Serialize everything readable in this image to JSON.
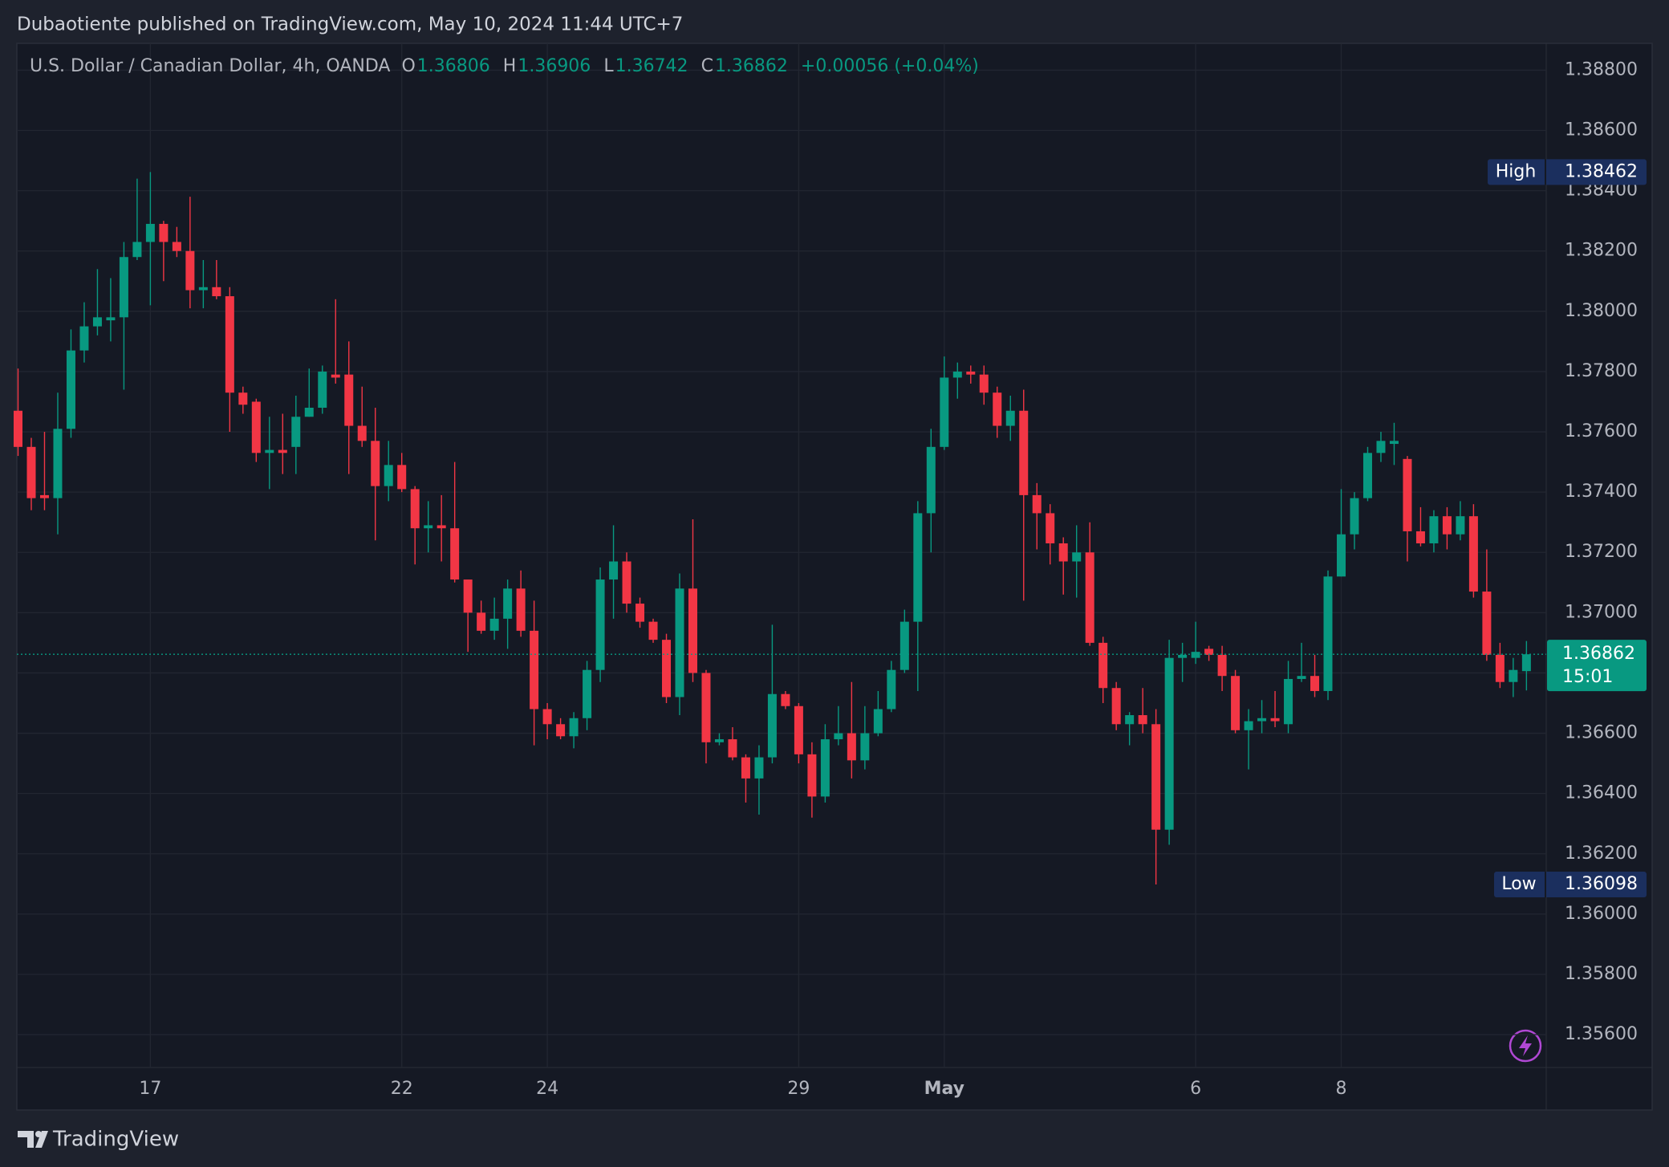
{
  "header": {
    "published": "Dubaotiente published on TradingView.com, May 10, 2024 11:44 UTC+7"
  },
  "chart_data": {
    "type": "candlestick",
    "title": "U.S. Dollar / Canadian Dollar, 4h, OANDA",
    "ohlc_labels": [
      "O",
      "H",
      "L",
      "C"
    ],
    "change": "+0.00056 (+0.04%)",
    "high_label": "High",
    "low_label": "Low",
    "countdown": "15:01",
    "up_color": "#089981",
    "down_color": "#f23645",
    "grid": true,
    "categories": [
      null,
      null,
      null,
      null,
      null,
      null,
      null,
      null,
      null,
      null,
      "17",
      null,
      null,
      null,
      null,
      null,
      null,
      null,
      null,
      null,
      null,
      null,
      null,
      null,
      null,
      null,
      null,
      null,
      null,
      "22",
      null,
      null,
      null,
      null,
      null,
      null,
      null,
      null,
      null,
      null,
      "24",
      null,
      null,
      null,
      null,
      null,
      null,
      null,
      null,
      null,
      null,
      null,
      null,
      null,
      null,
      null,
      null,
      null,
      null,
      "29",
      null,
      null,
      null,
      null,
      null,
      null,
      null,
      null,
      null,
      null,
      "May",
      null,
      null,
      null,
      null,
      null,
      null,
      null,
      null,
      null,
      null,
      null,
      null,
      null,
      null,
      null,
      null,
      null,
      null,
      "6",
      null,
      null,
      null,
      null,
      null,
      null,
      null,
      null,
      null,
      null,
      "8",
      null,
      null,
      null,
      null,
      null,
      null,
      null,
      null,
      null,
      null,
      null,
      null,
      null,
      null
    ],
    "open": [
      1.3767,
      1.3755,
      1.3739,
      1.3738,
      1.3761,
      1.3787,
      1.3795,
      1.3797,
      1.3798,
      1.3818,
      1.3823,
      1.3829,
      1.3823,
      1.382,
      1.3807,
      1.3808,
      1.3805,
      1.3773,
      1.377,
      1.3753,
      1.3754,
      1.3755,
      1.3765,
      1.3768,
      1.3779,
      1.3779,
      1.3762,
      1.3757,
      1.3742,
      1.3749,
      1.3741,
      1.3728,
      1.3729,
      1.3728,
      1.3711,
      1.37,
      1.3694,
      1.3698,
      1.3708,
      1.3694,
      1.3668,
      1.3663,
      1.3659,
      1.3665,
      1.3681,
      1.3711,
      1.3717,
      1.3703,
      1.3697,
      1.3691,
      1.3672,
      1.3708,
      1.368,
      1.3657,
      1.3658,
      1.3652,
      1.3645,
      1.3652,
      1.3673,
      1.3669,
      1.3653,
      1.3639,
      1.3658,
      1.366,
      1.3651,
      1.366,
      1.3668,
      1.3681,
      1.3697,
      1.3733,
      1.3755,
      1.3778,
      1.378,
      1.3779,
      1.3773,
      1.3762,
      1.3767,
      1.3739,
      1.3733,
      1.3723,
      1.3717,
      1.372,
      1.369,
      1.3675,
      1.3663,
      1.3666,
      1.3663,
      1.3628,
      1.3685,
      1.3685,
      1.3688,
      1.3686,
      1.3679,
      1.3661,
      1.3664,
      1.3665,
      1.3663,
      1.3678,
      1.3679,
      1.3674,
      1.3712,
      1.3726,
      1.3738,
      1.3753,
      1.3756,
      1.3751,
      1.3727,
      1.3723,
      1.3732,
      1.3726,
      1.3732,
      1.3707,
      1.3686,
      1.3677,
      1.36806
    ],
    "high": [
      1.3781,
      1.3758,
      1.376,
      1.3773,
      1.3794,
      1.3803,
      1.3814,
      1.3811,
      1.3823,
      1.3844,
      1.38462,
      1.383,
      1.3828,
      1.3838,
      1.3817,
      1.3817,
      1.3808,
      1.3775,
      1.3771,
      1.3765,
      1.3766,
      1.3772,
      1.3781,
      1.3782,
      1.3804,
      1.379,
      1.3775,
      1.3768,
      1.3757,
      1.3753,
      1.3742,
      1.3737,
      1.3739,
      1.375,
      1.3711,
      1.3704,
      1.3705,
      1.3711,
      1.3714,
      1.3704,
      1.367,
      1.3665,
      1.3667,
      1.3684,
      1.3715,
      1.3729,
      1.372,
      1.3705,
      1.3698,
      1.3693,
      1.3713,
      1.3731,
      1.3681,
      1.366,
      1.3662,
      1.3653,
      1.3656,
      1.3696,
      1.3674,
      1.367,
      1.3657,
      1.3663,
      1.3669,
      1.3677,
      1.3669,
      1.3674,
      1.3684,
      1.3701,
      1.3737,
      1.3761,
      1.3785,
      1.3783,
      1.3782,
      1.3782,
      1.3775,
      1.3772,
      1.3774,
      1.3743,
      1.3736,
      1.3725,
      1.3729,
      1.373,
      1.3692,
      1.3677,
      1.3667,
      1.3675,
      1.3668,
      1.3691,
      1.369,
      1.3697,
      1.3689,
      1.3689,
      1.3681,
      1.3668,
      1.3671,
      1.3674,
      1.3684,
      1.369,
      1.3686,
      1.3714,
      1.3741,
      1.374,
      1.3755,
      1.376,
      1.3763,
      1.3752,
      1.3735,
      1.3734,
      1.3735,
      1.3737,
      1.3736,
      1.3721,
      1.369,
      1.3685,
      1.36906
    ],
    "low": [
      1.3752,
      1.3734,
      1.3734,
      1.3726,
      1.3758,
      1.3783,
      1.3792,
      1.379,
      1.3774,
      1.3817,
      1.3802,
      1.381,
      1.3818,
      1.3801,
      1.3801,
      1.3804,
      1.376,
      1.3766,
      1.375,
      1.3741,
      1.3746,
      1.3746,
      1.3765,
      1.3766,
      1.3776,
      1.3746,
      1.3755,
      1.3724,
      1.3737,
      1.374,
      1.3716,
      1.372,
      1.3717,
      1.371,
      1.3687,
      1.3693,
      1.3691,
      1.3688,
      1.3692,
      1.3656,
      1.3658,
      1.3658,
      1.3655,
      1.3661,
      1.3677,
      1.3698,
      1.37,
      1.3695,
      1.369,
      1.367,
      1.3666,
      1.3677,
      1.365,
      1.3656,
      1.3651,
      1.3637,
      1.3633,
      1.365,
      1.3668,
      1.365,
      1.3632,
      1.3637,
      1.3656,
      1.3645,
      1.3648,
      1.3659,
      1.3667,
      1.368,
      1.3674,
      1.372,
      1.3754,
      1.3771,
      1.3776,
      1.3769,
      1.3758,
      1.3757,
      1.3704,
      1.3721,
      1.3716,
      1.3706,
      1.3705,
      1.3689,
      1.367,
      1.3661,
      1.3656,
      1.366,
      1.36098,
      1.3623,
      1.3677,
      1.3683,
      1.3684,
      1.3674,
      1.366,
      1.3648,
      1.366,
      1.3662,
      1.366,
      1.3677,
      1.3672,
      1.3671,
      1.3712,
      1.3721,
      1.3737,
      1.375,
      1.3749,
      1.3717,
      1.3722,
      1.372,
      1.3721,
      1.3724,
      1.3705,
      1.3684,
      1.3675,
      1.3672,
      1.36742
    ],
    "close": [
      1.3755,
      1.3738,
      1.3738,
      1.3761,
      1.3787,
      1.3795,
      1.3798,
      1.3798,
      1.3818,
      1.3823,
      1.3829,
      1.3823,
      1.382,
      1.3807,
      1.3808,
      1.3805,
      1.3773,
      1.3769,
      1.3753,
      1.3754,
      1.3753,
      1.3765,
      1.3768,
      1.378,
      1.3778,
      1.3762,
      1.3757,
      1.3742,
      1.3749,
      1.3741,
      1.3728,
      1.3729,
      1.3728,
      1.3711,
      1.37,
      1.3694,
      1.3698,
      1.3708,
      1.3694,
      1.3668,
      1.3663,
      1.3659,
      1.3665,
      1.3681,
      1.3711,
      1.3717,
      1.3703,
      1.3697,
      1.3691,
      1.3672,
      1.3708,
      1.368,
      1.3657,
      1.3658,
      1.3652,
      1.3645,
      1.3652,
      1.3673,
      1.3669,
      1.3653,
      1.3639,
      1.3658,
      1.366,
      1.3651,
      1.366,
      1.3668,
      1.3681,
      1.3697,
      1.3733,
      1.3755,
      1.3778,
      1.378,
      1.3779,
      1.3773,
      1.3762,
      1.3767,
      1.3739,
      1.3733,
      1.3723,
      1.3717,
      1.372,
      1.369,
      1.3675,
      1.3663,
      1.3666,
      1.3663,
      1.3628,
      1.3685,
      1.3686,
      1.3687,
      1.3686,
      1.3679,
      1.3661,
      1.3664,
      1.3665,
      1.3664,
      1.3678,
      1.3679,
      1.3674,
      1.3712,
      1.3726,
      1.3738,
      1.3753,
      1.3757,
      1.3757,
      1.3727,
      1.3723,
      1.3732,
      1.3726,
      1.3732,
      1.3707,
      1.3686,
      1.3677,
      1.3681,
      1.36862
    ],
    "ylim": [
      1.35491,
      1.38889
    ],
    "yticks": [
      {
        "value": 1.356,
        "label": "1.35600"
      },
      {
        "value": 1.358,
        "label": "1.35800"
      },
      {
        "value": 1.36,
        "label": "1.36000"
      },
      {
        "value": 1.362,
        "label": "1.36200"
      },
      {
        "value": 1.364,
        "label": "1.36400"
      },
      {
        "value": 1.366,
        "label": "1.36600"
      },
      {
        "value": 1.368,
        "label": "1.36800"
      },
      {
        "value": 1.37,
        "label": "1.37000"
      },
      {
        "value": 1.372,
        "label": "1.37200"
      },
      {
        "value": 1.374,
        "label": "1.37400"
      },
      {
        "value": 1.376,
        "label": "1.37600"
      },
      {
        "value": 1.378,
        "label": "1.37800"
      },
      {
        "value": 1.38,
        "label": "1.38000"
      },
      {
        "value": 1.382,
        "label": "1.38200"
      },
      {
        "value": 1.384,
        "label": "1.38400"
      },
      {
        "value": 1.386,
        "label": "1.38600"
      },
      {
        "value": 1.388,
        "label": "1.38800"
      }
    ]
  },
  "footer": {
    "brand": "TradingView"
  }
}
